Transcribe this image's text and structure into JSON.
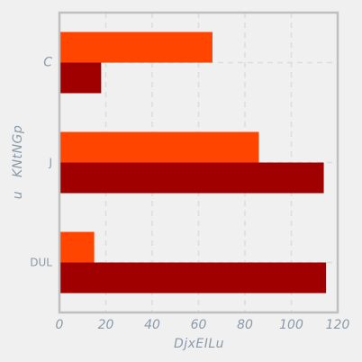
{
  "chart_data": {
    "type": "bar",
    "orientation": "horizontal",
    "categories": [
      "C",
      "J",
      "DUL"
    ],
    "series": [
      {
        "values": [
          18,
          114,
          115
        ],
        "color": "#a00000"
      },
      {
        "values": [
          66,
          86,
          15
        ],
        "color": "#ff4500"
      }
    ],
    "xlabel": "DjxEILu",
    "ylabel": "u   KNtNGp",
    "xlim": [
      0,
      120
    ],
    "xticks": [
      0,
      20,
      40,
      60,
      80,
      100,
      120
    ],
    "grid": true,
    "background": "#f0f0f0",
    "frame_color": "#bfbfbf",
    "text_color": "#8a9aa8"
  }
}
